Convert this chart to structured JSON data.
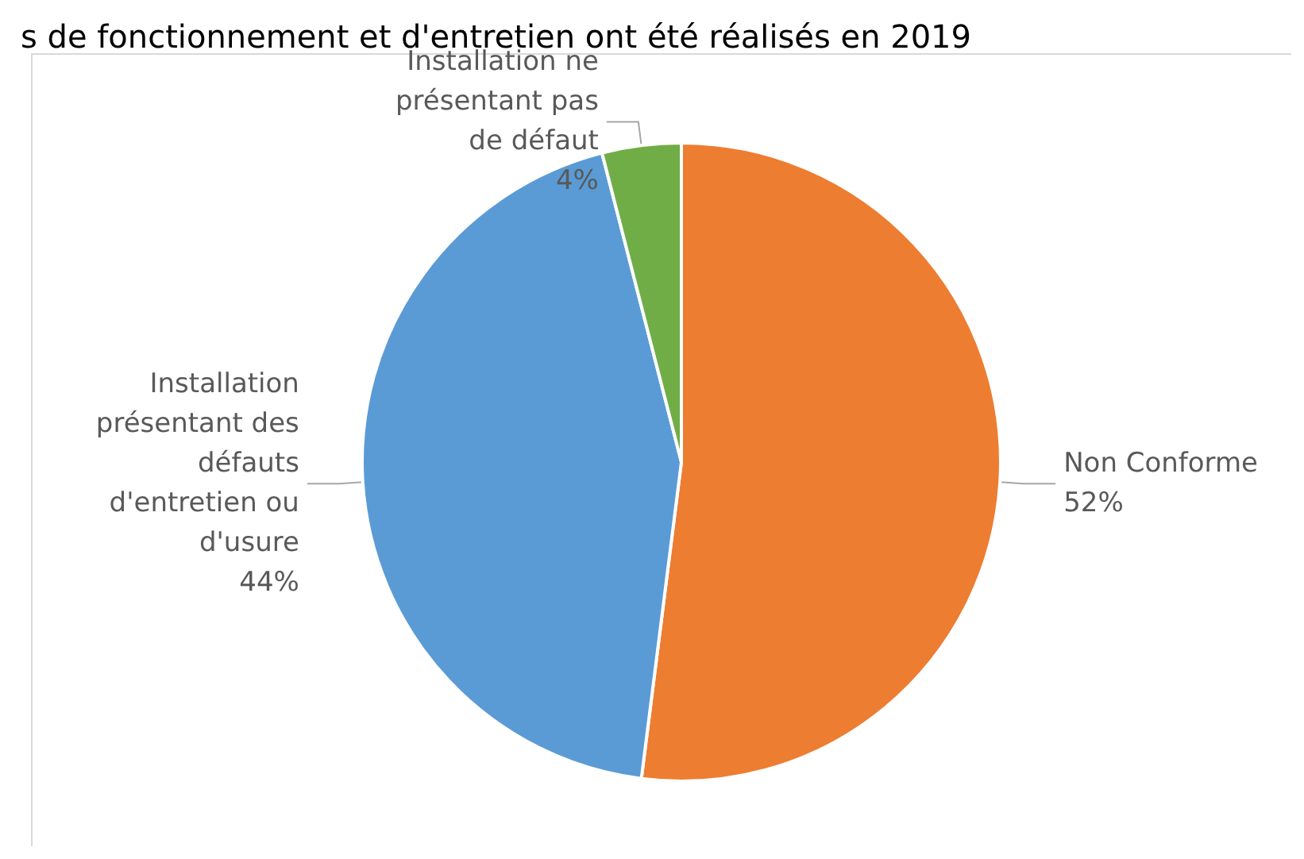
{
  "chart_data": {
    "type": "pie",
    "title": "s de fonctionnement et d'entretien ont été réalisés en 2019",
    "categories": [
      "Non Conforme",
      "Installation\nprésentant des\ndéfauts\nd'entretien ou\nd'usure",
      "Installation ne\nprésentant pas\nde défaut"
    ],
    "values": [
      52,
      44,
      4
    ],
    "value_labels": [
      "52%",
      "44%",
      "4%"
    ],
    "colors": [
      "#ed7d31",
      "#5b9bd5",
      "#70ad47"
    ],
    "legend": false
  }
}
